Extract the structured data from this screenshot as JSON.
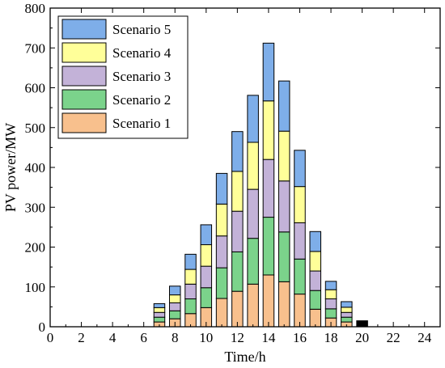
{
  "chart_data": {
    "type": "bar",
    "stacked": true,
    "xlabel": "Time/h",
    "ylabel": "PV power/MW",
    "xlim": [
      0,
      25
    ],
    "ylim": [
      0,
      800
    ],
    "xticks": [
      0,
      2,
      4,
      6,
      8,
      10,
      12,
      14,
      16,
      18,
      20,
      22,
      24
    ],
    "yticks": [
      0,
      100,
      200,
      300,
      400,
      500,
      600,
      700,
      800
    ],
    "grid": false,
    "legend_position": "top-left",
    "x": [
      7,
      8,
      9,
      10,
      11,
      12,
      13,
      14,
      15,
      16,
      17,
      18,
      19,
      20
    ],
    "series": [
      {
        "name": "Scenario 1",
        "color": "#f8c08d",
        "values": [
          12,
          20,
          33,
          48,
          71,
          89,
          107,
          130,
          113,
          82,
          44,
          22,
          12,
          0
        ]
      },
      {
        "name": "Scenario 2",
        "color": "#7bd38b",
        "values": [
          12,
          20,
          37,
          50,
          77,
          99,
          115,
          145,
          125,
          88,
          47,
          23,
          12,
          0
        ]
      },
      {
        "name": "Scenario 3",
        "color": "#c3b2d8",
        "values": [
          12,
          20,
          37,
          54,
          80,
          102,
          123,
          145,
          128,
          91,
          49,
          25,
          12,
          0
        ]
      },
      {
        "name": "Scenario 4",
        "color": "#ffff99",
        "values": [
          12,
          20,
          37,
          54,
          80,
          100,
          118,
          147,
          125,
          91,
          49,
          23,
          13,
          0
        ]
      },
      {
        "name": "Scenario 5",
        "color": "#7eaee9",
        "values": [
          10,
          22,
          38,
          50,
          77,
          100,
          118,
          145,
          126,
          91,
          50,
          21,
          14,
          15
        ]
      }
    ],
    "extra_colors": {
      "final_bar": "#000000"
    }
  }
}
